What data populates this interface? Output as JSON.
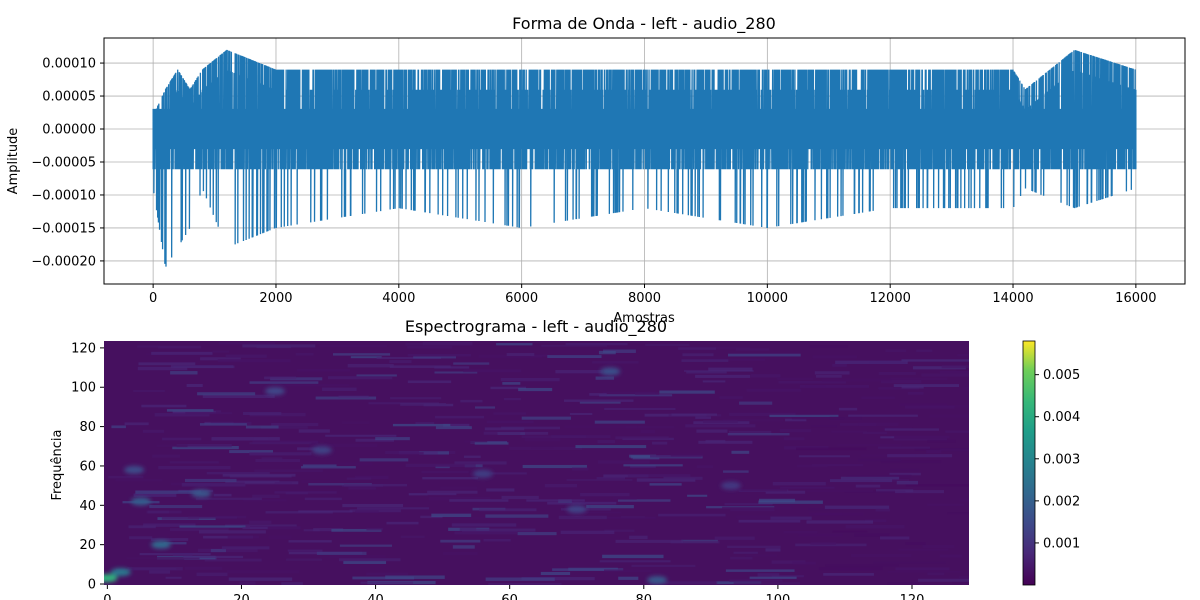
{
  "chart_data": [
    {
      "type": "line",
      "title": "Forma de Onda - left - audio_280",
      "xlabel": "Amostras",
      "ylabel": "Amplitude",
      "xlim": [
        -800,
        16800
      ],
      "ylim": [
        -0.000235,
        0.000138
      ],
      "grid": true,
      "x_ticks": [
        0,
        2000,
        4000,
        6000,
        8000,
        10000,
        12000,
        14000,
        16000
      ],
      "x_tick_labels": [
        "0",
        "2000",
        "4000",
        "6000",
        "8000",
        "10000",
        "12000",
        "14000",
        "16000"
      ],
      "y_ticks": [
        0.0001,
        5e-05,
        0.0,
        -5e-05,
        -0.0001,
        -0.00015,
        -0.0002
      ],
      "y_tick_labels": [
        "0.00010",
        "0.00005",
        "0.00000",
        "−0.00005",
        "−0.00010",
        "−0.00015",
        "−0.00020"
      ],
      "line_color": "#1f77b4",
      "n_samples": 16000,
      "envelope": {
        "x": [
          0,
          200,
          400,
          600,
          800,
          1200,
          2000,
          4000,
          6000,
          8000,
          10000,
          12000,
          14000,
          14200,
          15000,
          16000
        ],
        "upper": [
          2e-05,
          6e-05,
          9e-05,
          6e-05,
          9e-05,
          0.00012,
          9e-05,
          9e-05,
          9e-05,
          9e-05,
          9e-05,
          9e-05,
          9e-05,
          6e-05,
          0.00012,
          9e-05
        ],
        "lower": [
          -9e-05,
          -0.00021,
          -0.00018,
          -0.00015,
          -9e-05,
          -0.00018,
          -0.00015,
          -0.00012,
          -0.00015,
          -0.00012,
          -0.00015,
          -0.00012,
          -0.00012,
          -9e-05,
          -0.00012,
          -9e-05
        ]
      }
    },
    {
      "type": "heatmap",
      "title": "Espectrograma - left - audio_280",
      "xlabel": "",
      "ylabel": "Frequência",
      "xlim": [
        -0.5,
        128.5
      ],
      "ylim": [
        -0.5,
        123.5
      ],
      "x_ticks": [
        0,
        20,
        40,
        60,
        80,
        100,
        120
      ],
      "x_tick_labels": [
        "0",
        "20",
        "40",
        "60",
        "80",
        "100",
        "120"
      ],
      "y_ticks": [
        0,
        20,
        40,
        60,
        80,
        100,
        120
      ],
      "y_tick_labels": [
        "0",
        "20",
        "40",
        "60",
        "80",
        "100",
        "120"
      ],
      "colormap": "viridis",
      "colorbar": {
        "range": [
          0,
          0.0058
        ],
        "ticks": [
          0.001,
          0.002,
          0.003,
          0.004,
          0.005
        ],
        "tick_labels": [
          "0.001",
          "0.002",
          "0.003",
          "0.004",
          "0.005"
        ]
      },
      "background_color": "#46105f",
      "hot_spots": [
        {
          "x": 0,
          "y": 3,
          "v": 0.0042
        },
        {
          "x": 2,
          "y": 6,
          "v": 0.0026
        },
        {
          "x": 5,
          "y": 42,
          "v": 0.0019
        },
        {
          "x": 8,
          "y": 20,
          "v": 0.0022
        },
        {
          "x": 14,
          "y": 46,
          "v": 0.0017
        },
        {
          "x": 4,
          "y": 58,
          "v": 0.0015
        },
        {
          "x": 25,
          "y": 98,
          "v": 0.0014
        },
        {
          "x": 32,
          "y": 68,
          "v": 0.0013
        },
        {
          "x": 56,
          "y": 56,
          "v": 0.0012
        },
        {
          "x": 70,
          "y": 38,
          "v": 0.0013
        },
        {
          "x": 75,
          "y": 108,
          "v": 0.0016
        },
        {
          "x": 82,
          "y": 2,
          "v": 0.0018
        },
        {
          "x": 93,
          "y": 50,
          "v": 0.0011
        }
      ]
    }
  ]
}
